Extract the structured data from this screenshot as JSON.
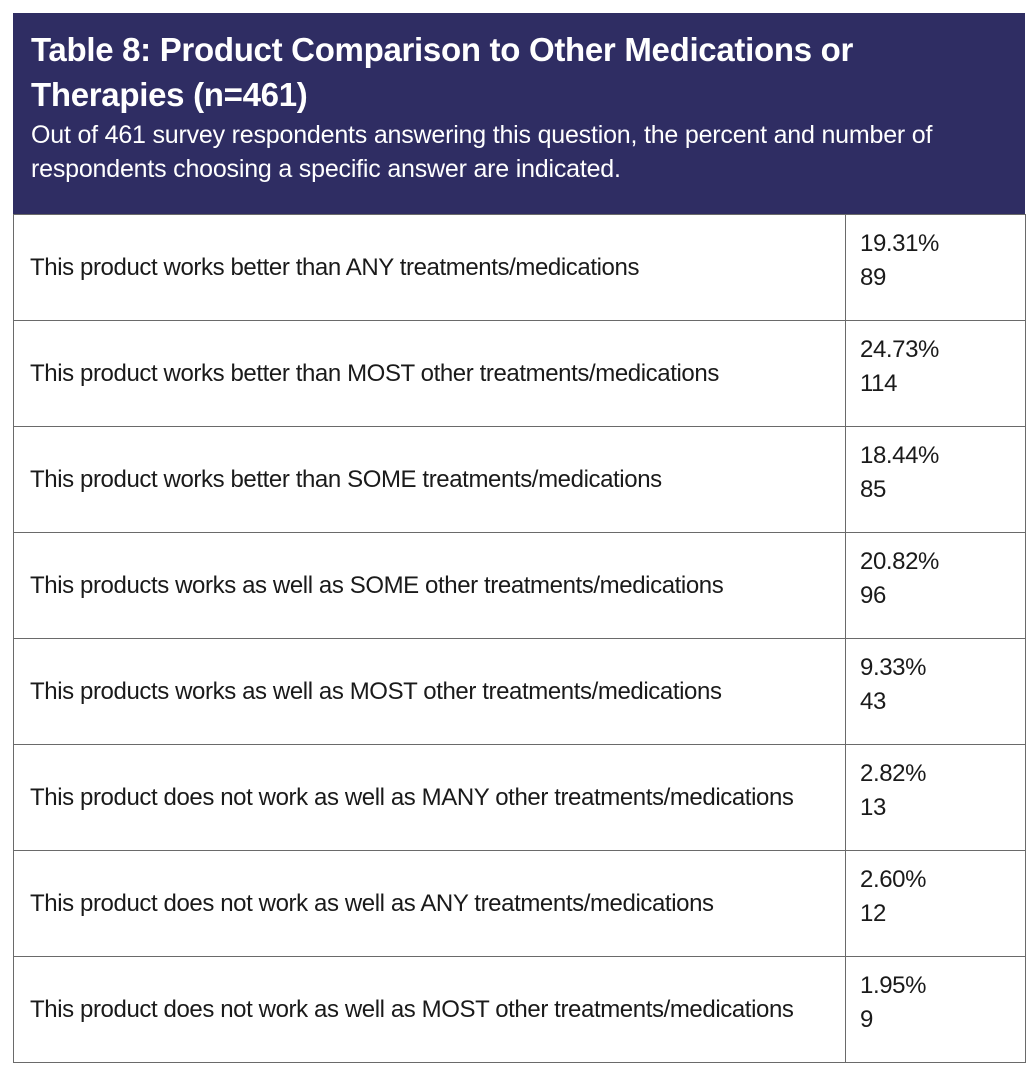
{
  "table": {
    "title": "Table 8: Product Comparison to Other Medications or Therapies (n=461)",
    "subtitle": "Out of 461 survey respondents answering this question, the percent and number of respondents choosing a specific answer are indicated.",
    "rows": [
      {
        "label": "This product works better than ANY treatments/medications",
        "percent": "19.31%",
        "count": "89"
      },
      {
        "label": "This product works better than MOST other treatments/medications",
        "percent": "24.73%",
        "count": "114"
      },
      {
        "label": "This product works better than SOME treatments/medications",
        "percent": "18.44%",
        "count": "85"
      },
      {
        "label": "This products works as well as SOME other treatments/medications",
        "percent": "20.82%",
        "count": "96"
      },
      {
        "label": "This products works as well as MOST other treatments/medications",
        "percent": "9.33%",
        "count": "43"
      },
      {
        "label": "This product does not work as well as MANY other treatments/medications",
        "percent": "2.82%",
        "count": "13"
      },
      {
        "label": "This product does not work as well as ANY treatments/medications",
        "percent": "2.60%",
        "count": "12"
      },
      {
        "label": "This product does not work as well as MOST other treatments/medications",
        "percent": "1.95%",
        "count": "9"
      }
    ]
  }
}
